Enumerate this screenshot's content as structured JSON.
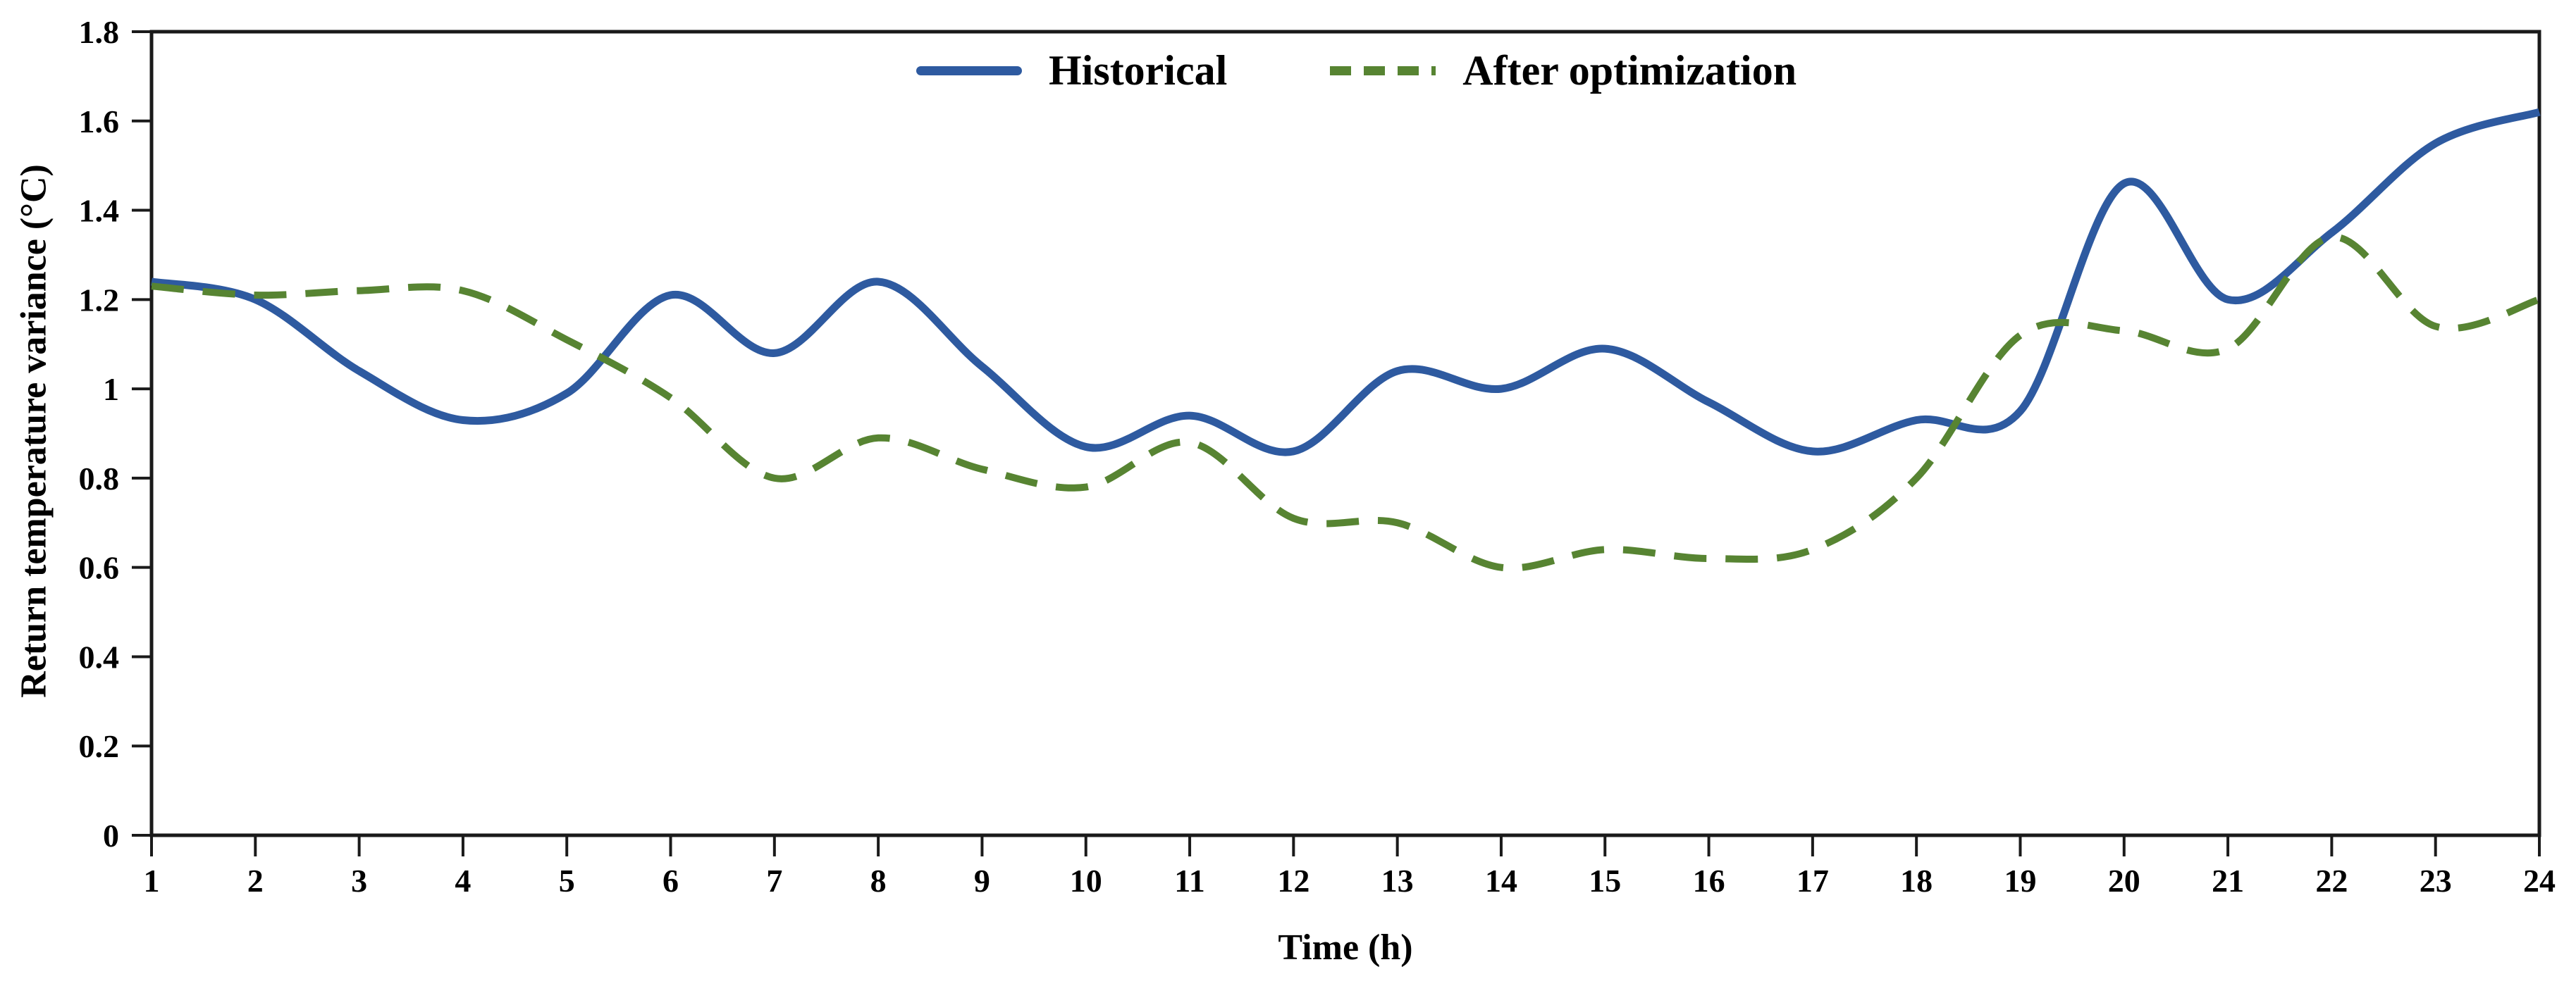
{
  "chart_data": {
    "type": "line",
    "title": "",
    "xlabel": "Time (h)",
    "ylabel": "Return temperature variance (°C)",
    "xlim": [
      1,
      24
    ],
    "ylim": [
      0,
      1.8
    ],
    "grid": "off",
    "legend_position": "top-center-inside",
    "x": [
      1,
      2,
      3,
      4,
      5,
      6,
      7,
      8,
      9,
      10,
      11,
      12,
      13,
      14,
      15,
      16,
      17,
      18,
      19,
      20,
      21,
      22,
      23,
      24
    ],
    "x_tick_labels": [
      "1",
      "2",
      "3",
      "4",
      "5",
      "6",
      "7",
      "8",
      "9",
      "10",
      "11",
      "12",
      "13",
      "14",
      "15",
      "16",
      "17",
      "18",
      "19",
      "20",
      "21",
      "22",
      "23",
      "24"
    ],
    "y_ticks": [
      0,
      0.2,
      0.4,
      0.6,
      0.8,
      1,
      1.2,
      1.4,
      1.6,
      1.8
    ],
    "y_tick_labels": [
      "0",
      "0.2",
      "0.4",
      "0.6",
      "0.8",
      "1",
      "1.2",
      "1.4",
      "1.6",
      "1.8"
    ],
    "axis_color": "#1a1a1a",
    "series": [
      {
        "name": "Historical",
        "style": "solid",
        "color": "#2E5AA0",
        "values": [
          1.24,
          1.2,
          1.04,
          0.93,
          0.99,
          1.21,
          1.08,
          1.24,
          1.05,
          0.87,
          0.94,
          0.86,
          1.04,
          1.0,
          1.09,
          0.97,
          0.86,
          0.93,
          0.95,
          1.46,
          1.2,
          1.35,
          1.55,
          1.62
        ]
      },
      {
        "name": "After optimization",
        "style": "dashed",
        "color": "#578432",
        "values": [
          1.23,
          1.21,
          1.22,
          1.22,
          1.11,
          0.98,
          0.8,
          0.89,
          0.82,
          0.78,
          0.88,
          0.71,
          0.7,
          0.6,
          0.64,
          0.62,
          0.64,
          0.8,
          1.12,
          1.13,
          1.09,
          1.34,
          1.14,
          1.2
        ]
      }
    ]
  }
}
